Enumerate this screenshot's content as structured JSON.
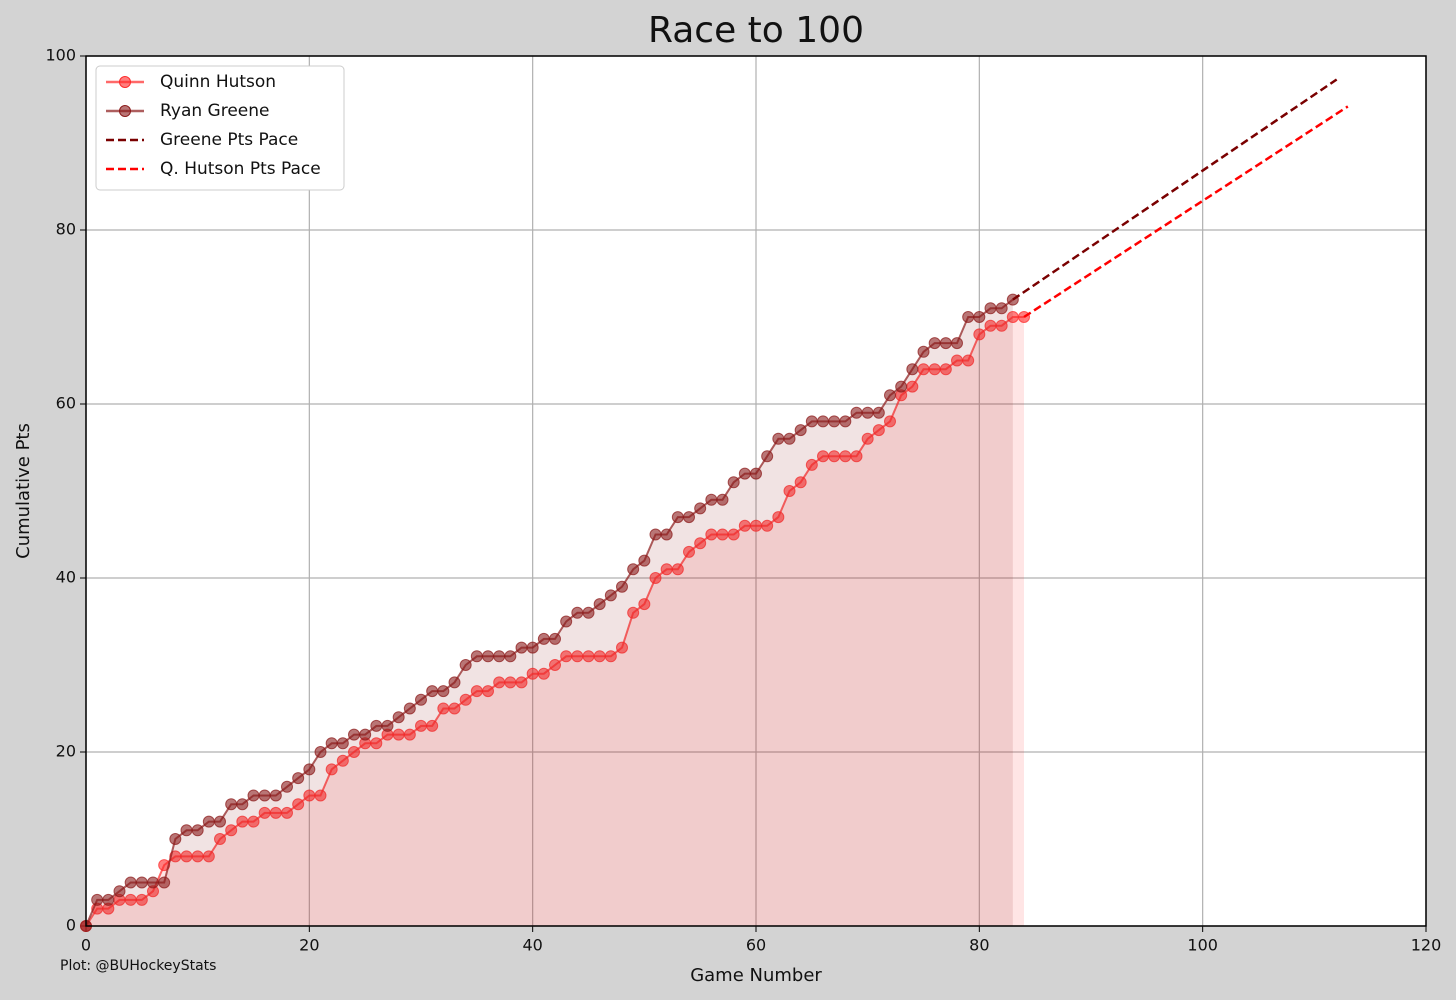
{
  "chart_data": {
    "type": "line",
    "title": "Race to 100",
    "x_label": "Game Number",
    "y_label": "Cumulative Pts",
    "footnote": "Plot: @BUHockeyStats",
    "xlim": [
      0,
      120
    ],
    "ylim": [
      0,
      100
    ],
    "xticks": [
      0,
      20,
      40,
      60,
      80,
      100,
      120
    ],
    "yticks": [
      0,
      20,
      40,
      60,
      80,
      100
    ],
    "grid": true,
    "legend": "upper left",
    "series": [
      {
        "name": "Quinn Hutson",
        "color": "#ff2a2a",
        "style": "solid",
        "marker": true,
        "fill": true,
        "x": [
          0,
          1,
          2,
          3,
          4,
          5,
          6,
          7,
          8,
          9,
          10,
          11,
          12,
          13,
          14,
          15,
          16,
          17,
          18,
          19,
          20,
          21,
          22,
          23,
          24,
          25,
          26,
          27,
          28,
          29,
          30,
          31,
          32,
          33,
          34,
          35,
          36,
          37,
          38,
          39,
          40,
          41,
          42,
          43,
          44,
          45,
          46,
          47,
          48,
          49,
          50,
          51,
          52,
          53,
          54,
          55,
          56,
          57,
          58,
          59,
          60,
          61,
          62,
          63,
          64,
          65,
          66,
          67,
          68,
          69,
          70,
          71,
          72,
          73,
          74,
          75,
          76,
          77,
          78,
          79,
          80,
          81,
          82,
          83,
          84
        ],
        "values": [
          0,
          2,
          2,
          3,
          3,
          3,
          4,
          7,
          8,
          8,
          8,
          8,
          10,
          11,
          12,
          12,
          13,
          13,
          13,
          14,
          15,
          15,
          18,
          19,
          20,
          21,
          21,
          22,
          22,
          22,
          23,
          23,
          25,
          25,
          26,
          27,
          27,
          28,
          28,
          28,
          29,
          29,
          30,
          31,
          31,
          31,
          31,
          31,
          32,
          36,
          37,
          40,
          41,
          41,
          43,
          44,
          45,
          45,
          45,
          46,
          46,
          46,
          47,
          50,
          51,
          53,
          54,
          54,
          54,
          54,
          56,
          57,
          58,
          61,
          62,
          64,
          64,
          64,
          65,
          65,
          68,
          69,
          69,
          70,
          70
        ]
      },
      {
        "name": "Ryan Greene",
        "color": "#8b1a1a",
        "style": "solid",
        "marker": true,
        "fill": true,
        "x": [
          0,
          1,
          2,
          3,
          4,
          5,
          6,
          7,
          8,
          9,
          10,
          11,
          12,
          13,
          14,
          15,
          16,
          17,
          18,
          19,
          20,
          21,
          22,
          23,
          24,
          25,
          26,
          27,
          28,
          29,
          30,
          31,
          32,
          33,
          34,
          35,
          36,
          37,
          38,
          39,
          40,
          41,
          42,
          43,
          44,
          45,
          46,
          47,
          48,
          49,
          50,
          51,
          52,
          53,
          54,
          55,
          56,
          57,
          58,
          59,
          60,
          61,
          62,
          63,
          64,
          65,
          66,
          67,
          68,
          69,
          70,
          71,
          72,
          73,
          74,
          75,
          76,
          77,
          78,
          79,
          80,
          81,
          82,
          83
        ],
        "values": [
          0,
          3,
          3,
          4,
          5,
          5,
          5,
          5,
          10,
          11,
          11,
          12,
          12,
          14,
          14,
          15,
          15,
          15,
          16,
          17,
          18,
          20,
          21,
          21,
          22,
          22,
          23,
          23,
          24,
          25,
          26,
          27,
          27,
          28,
          30,
          31,
          31,
          31,
          31,
          32,
          32,
          33,
          33,
          35,
          36,
          36,
          37,
          38,
          39,
          41,
          42,
          45,
          45,
          47,
          47,
          48,
          49,
          49,
          51,
          52,
          52,
          54,
          56,
          56,
          57,
          58,
          58,
          58,
          58,
          59,
          59,
          59,
          61,
          62,
          64,
          66,
          67,
          67,
          67,
          70,
          70,
          71,
          71,
          72
        ]
      },
      {
        "name": "Greene Pts Pace",
        "color": "#7a0000",
        "style": "dashed",
        "marker": false,
        "fill": false,
        "x": [
          83,
          112
        ],
        "values": [
          72,
          97.3
        ]
      },
      {
        "name": "Q. Hutson Pts Pace",
        "color": "#ff0000",
        "style": "dashed",
        "marker": false,
        "fill": false,
        "x": [
          84,
          113
        ],
        "values": [
          70,
          94.2
        ]
      }
    ]
  }
}
